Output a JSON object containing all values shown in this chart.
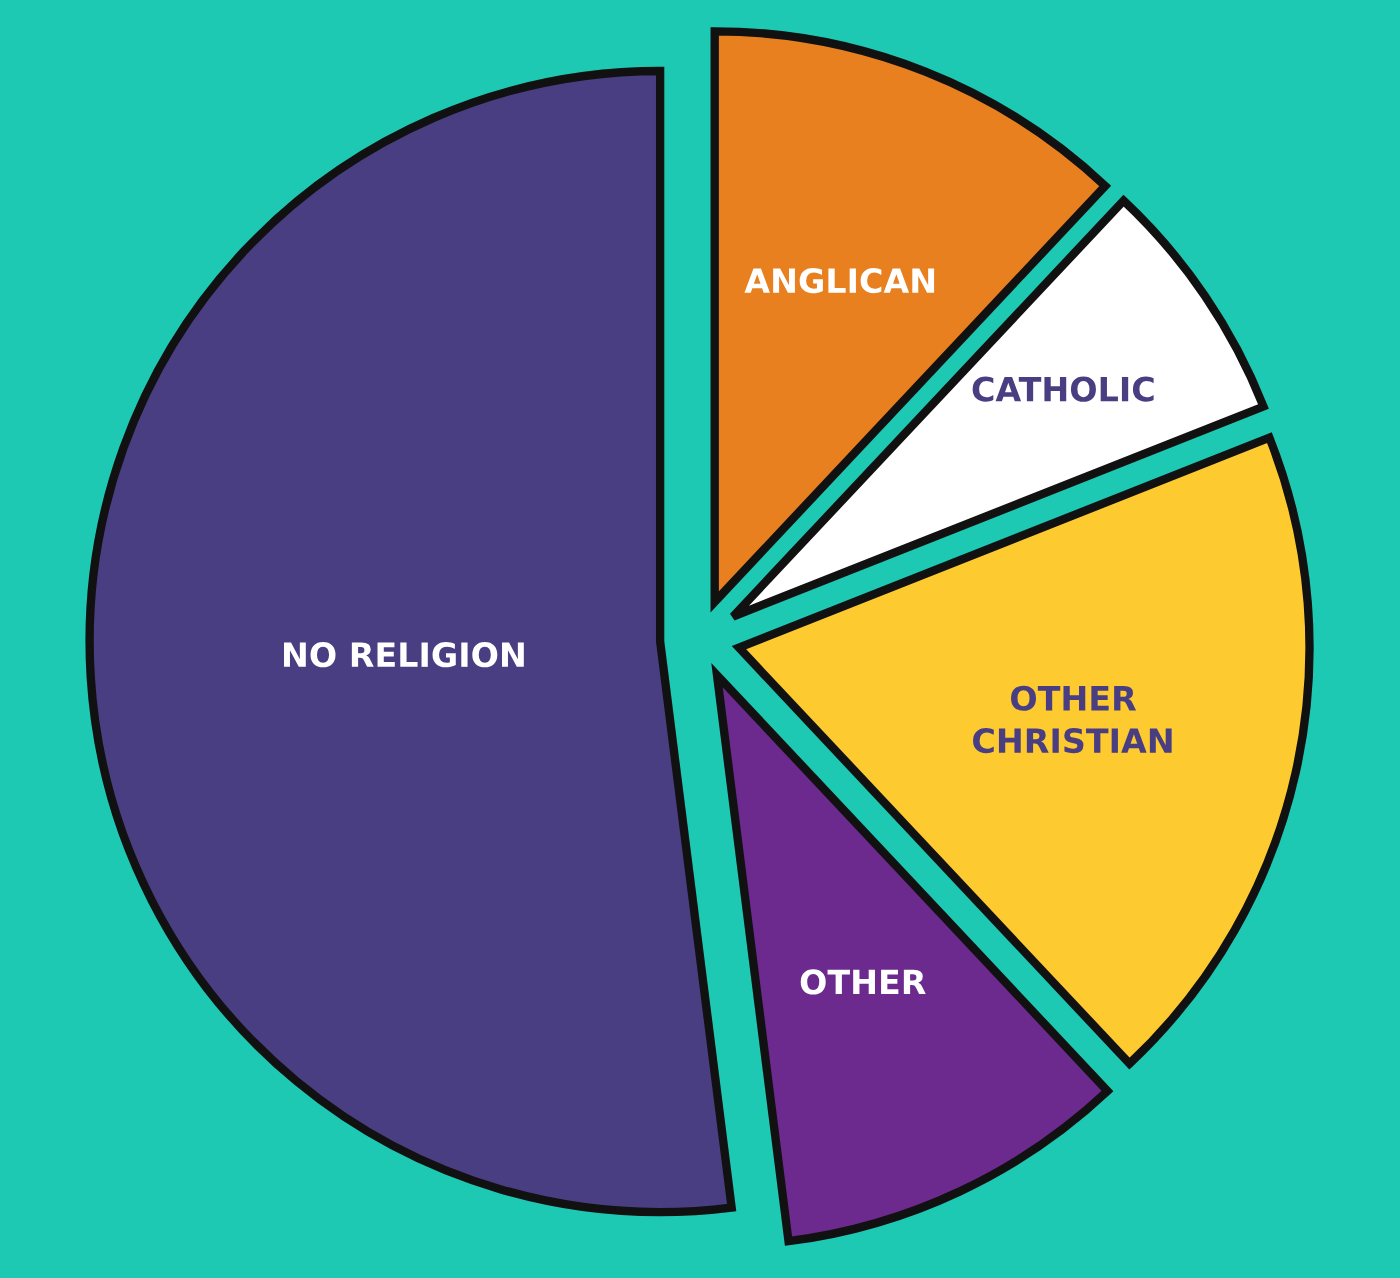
{
  "chart_data": {
    "type": "pie",
    "categories": [
      "ANGLICAN",
      "CATHOLIC",
      "OTHER\nCHRISTIAN",
      "OTHER",
      "NO RELIGION"
    ],
    "values": [
      12,
      7,
      19,
      10,
      52
    ],
    "colors": [
      "#e8801f",
      "#ffffff",
      "#fdca30",
      "#6c2a8e",
      "#4a3e82"
    ]
  }
}
